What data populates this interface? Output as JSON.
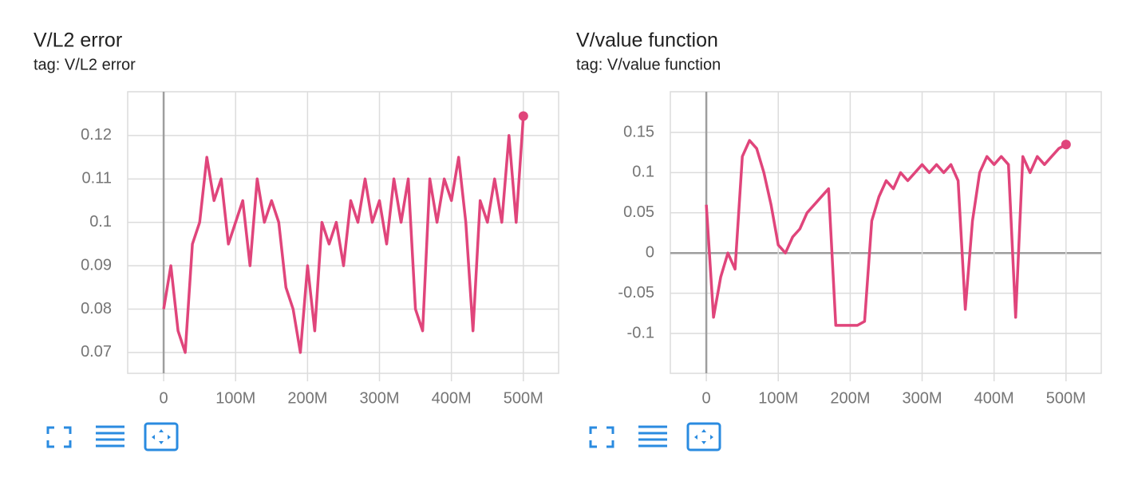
{
  "chart_data": [
    {
      "type": "line",
      "title": "V/L2 error",
      "subtitle": "tag: V/L2 error",
      "x": [
        0,
        10000000,
        20000000,
        30000000,
        40000000,
        50000000,
        60000000,
        70000000,
        80000000,
        90000000,
        100000000,
        110000000,
        120000000,
        130000000,
        140000000,
        150000000,
        160000000,
        170000000,
        180000000,
        190000000,
        200000000,
        210000000,
        220000000,
        230000000,
        240000000,
        250000000,
        260000000,
        270000000,
        280000000,
        290000000,
        300000000,
        310000000,
        320000000,
        330000000,
        340000000,
        350000000,
        360000000,
        370000000,
        380000000,
        390000000,
        400000000,
        410000000,
        420000000,
        430000000,
        440000000,
        450000000,
        460000000,
        470000000,
        480000000,
        490000000,
        500000000
      ],
      "series": [
        {
          "color": "#e0457b",
          "values": [
            0.08,
            0.09,
            0.075,
            0.07,
            0.095,
            0.1,
            0.115,
            0.105,
            0.11,
            0.095,
            0.1,
            0.105,
            0.09,
            0.11,
            0.1,
            0.105,
            0.1,
            0.085,
            0.08,
            0.07,
            0.09,
            0.075,
            0.1,
            0.095,
            0.1,
            0.09,
            0.105,
            0.1,
            0.11,
            0.1,
            0.105,
            0.095,
            0.11,
            0.1,
            0.11,
            0.08,
            0.075,
            0.11,
            0.1,
            0.11,
            0.105,
            0.115,
            0.1,
            0.075,
            0.105,
            0.1,
            0.11,
            0.1,
            0.12,
            0.1,
            0.1245
          ]
        }
      ],
      "xlim": [
        -50000000,
        549000000
      ],
      "xticks": [
        {
          "value": 0,
          "label": "0"
        },
        {
          "value": 100000000,
          "label": "100M"
        },
        {
          "value": 200000000,
          "label": "200M"
        },
        {
          "value": 300000000,
          "label": "300M"
        },
        {
          "value": 400000000,
          "label": "400M"
        },
        {
          "value": 500000000,
          "label": "500M"
        }
      ],
      "ylim": [
        0.0652,
        0.1301
      ],
      "yticks": [
        0.07,
        0.08,
        0.09,
        0.1,
        0.11,
        0.12
      ],
      "grid": true
    },
    {
      "type": "line",
      "title": "V/value function",
      "subtitle": "tag: V/value function",
      "x": [
        0,
        10000000,
        20000000,
        30000000,
        40000000,
        50000000,
        60000000,
        70000000,
        80000000,
        90000000,
        100000000,
        110000000,
        120000000,
        130000000,
        140000000,
        150000000,
        160000000,
        170000000,
        180000000,
        190000000,
        200000000,
        210000000,
        220000000,
        230000000,
        240000000,
        250000000,
        260000000,
        270000000,
        280000000,
        290000000,
        300000000,
        310000000,
        320000000,
        330000000,
        340000000,
        350000000,
        360000000,
        370000000,
        380000000,
        390000000,
        400000000,
        410000000,
        420000000,
        430000000,
        440000000,
        450000000,
        460000000,
        470000000,
        480000000,
        490000000,
        500000000
      ],
      "series": [
        {
          "color": "#e0457b",
          "values": [
            0.06,
            -0.08,
            -0.03,
            0.0,
            -0.02,
            0.12,
            0.14,
            0.13,
            0.1,
            0.06,
            0.01,
            0.0,
            0.02,
            0.03,
            0.05,
            0.06,
            0.07,
            0.08,
            -0.09,
            -0.09,
            -0.09,
            -0.09,
            -0.085,
            0.04,
            0.07,
            0.09,
            0.08,
            0.1,
            0.09,
            0.1,
            0.11,
            0.1,
            0.11,
            0.1,
            0.11,
            0.09,
            -0.07,
            0.04,
            0.1,
            0.12,
            0.11,
            0.12,
            0.11,
            -0.08,
            0.12,
            0.1,
            0.12,
            0.11,
            0.12,
            0.13,
            0.135
          ]
        }
      ],
      "xlim": [
        -50000000,
        549000000
      ],
      "xticks": [
        {
          "value": 0,
          "label": "0"
        },
        {
          "value": 100000000,
          "label": "100M"
        },
        {
          "value": 200000000,
          "label": "200M"
        },
        {
          "value": 300000000,
          "label": "300M"
        },
        {
          "value": 400000000,
          "label": "400M"
        },
        {
          "value": 500000000,
          "label": "500M"
        }
      ],
      "ylim": [
        -0.1496,
        0.2006
      ],
      "yticks": [
        -0.1,
        -0.05,
        0,
        0.05,
        0.1,
        0.15
      ],
      "grid": true
    }
  ]
}
